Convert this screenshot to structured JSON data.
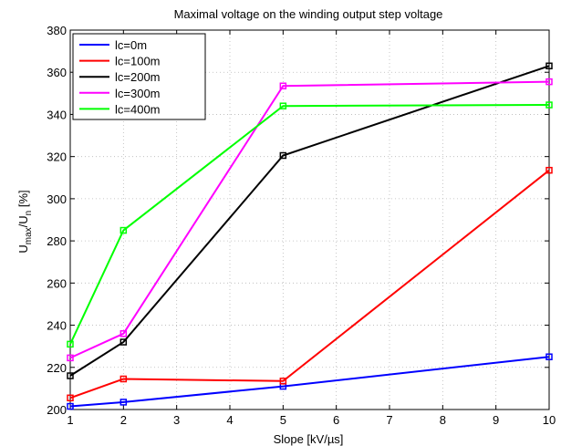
{
  "chart_data": {
    "type": "line",
    "title": "Maximal voltage on the winding output step voltage",
    "xlabel": "Slope [kV/µs]",
    "ylabel": {
      "main": "U",
      "sub1": "max",
      "mid": "/U",
      "sub2": "n",
      "tail": " [%]"
    },
    "xlim": [
      1,
      10
    ],
    "ylim": [
      200,
      380
    ],
    "xticks": [
      1,
      2,
      3,
      4,
      5,
      6,
      7,
      8,
      9,
      10
    ],
    "yticks": [
      200,
      220,
      240,
      260,
      280,
      300,
      320,
      340,
      360,
      380
    ],
    "grid": true,
    "legend_position": "top-left",
    "x": [
      1,
      2,
      5,
      10
    ],
    "series": [
      {
        "name": "lc=0m",
        "color": "#0000ff",
        "values": [
          201.5,
          203.5,
          211,
          225
        ]
      },
      {
        "name": "lc=100m",
        "color": "#ff0000",
        "values": [
          205.5,
          214.5,
          213.5,
          313.5
        ]
      },
      {
        "name": "lc=200m",
        "color": "#000000",
        "values": [
          216,
          232,
          320.5,
          363
        ]
      },
      {
        "name": "lc=300m",
        "color": "#ff00ff",
        "values": [
          224.5,
          236,
          353.5,
          355.5
        ]
      },
      {
        "name": "lc=400m",
        "color": "#00ff00",
        "values": [
          231,
          285,
          344,
          344.5
        ]
      }
    ]
  }
}
